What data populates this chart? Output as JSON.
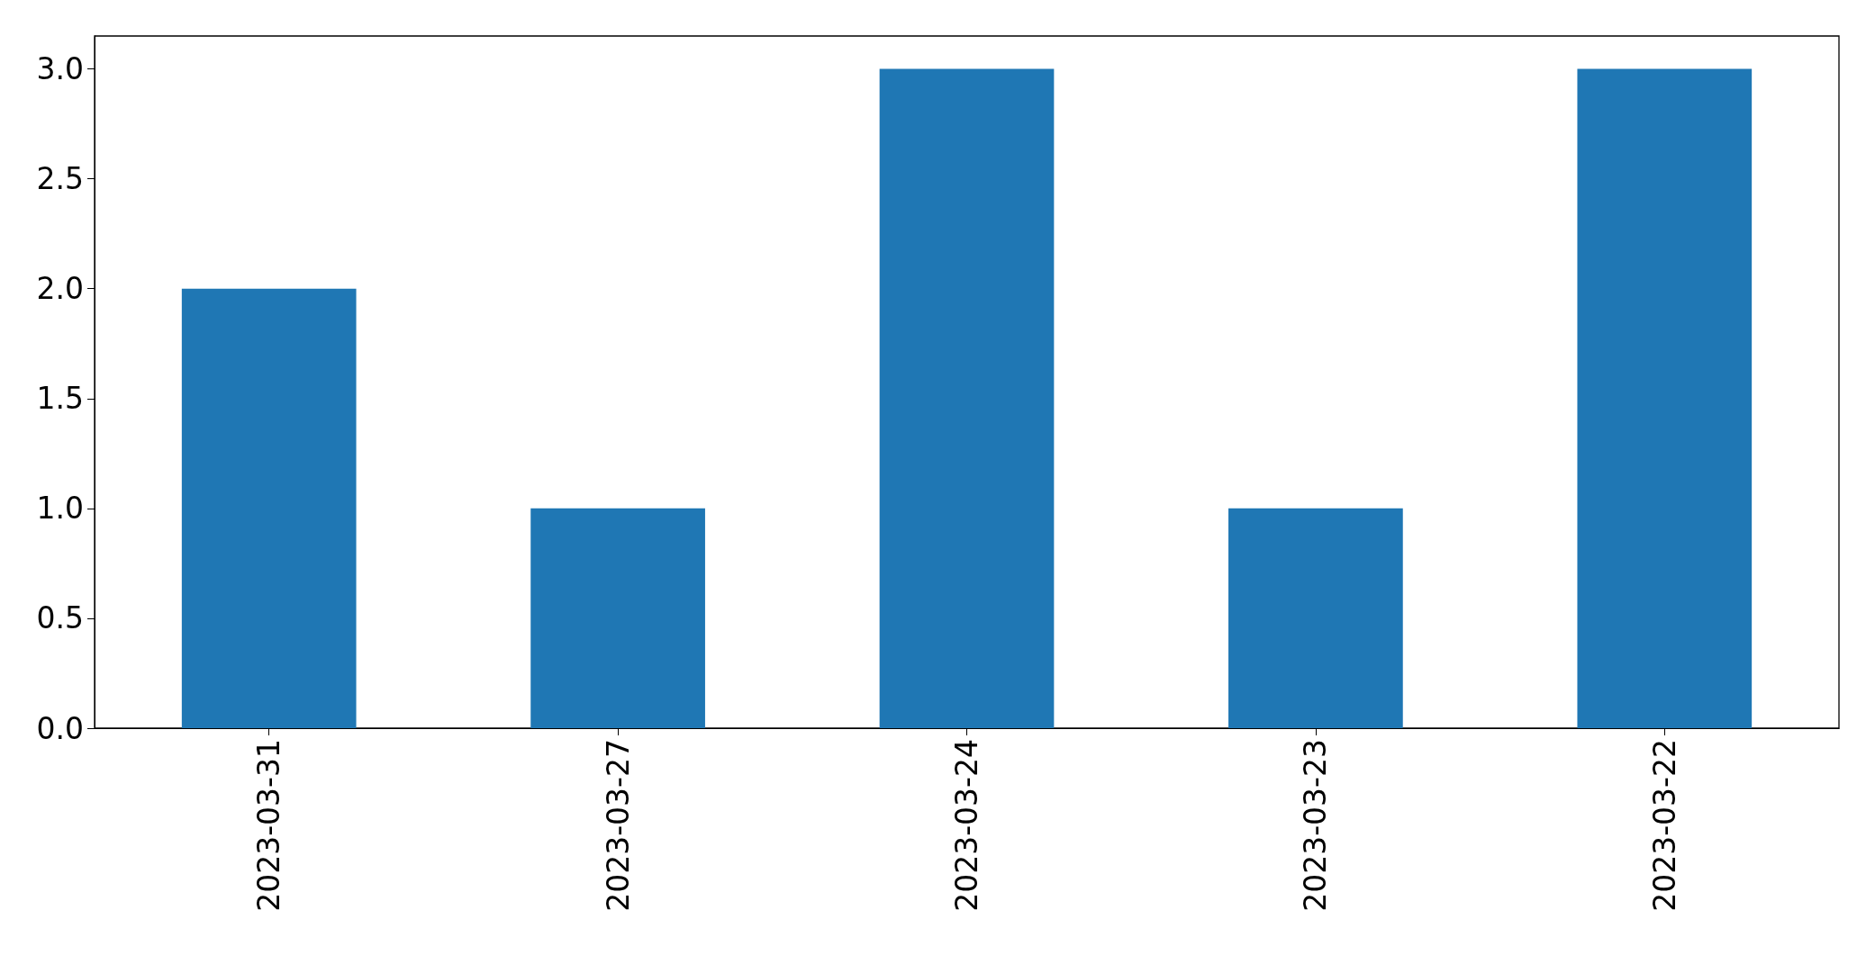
{
  "chart_data": {
    "type": "bar",
    "categories": [
      "2023-03-31",
      "2023-03-27",
      "2023-03-24",
      "2023-03-23",
      "2023-03-22"
    ],
    "values": [
      2,
      1,
      3,
      1,
      3
    ],
    "color": "#1f77b4",
    "ylim": [
      0,
      3.15
    ],
    "yticks": [
      {
        "value": 0,
        "label": "0.0"
      },
      {
        "value": 0.5,
        "label": "0.5"
      },
      {
        "value": 1,
        "label": "1.0"
      },
      {
        "value": 1.5,
        "label": "1.5"
      },
      {
        "value": 2,
        "label": "2.0"
      },
      {
        "value": 2.5,
        "label": "2.5"
      },
      {
        "value": 3,
        "label": "3.0"
      }
    ],
    "grid": false
  }
}
